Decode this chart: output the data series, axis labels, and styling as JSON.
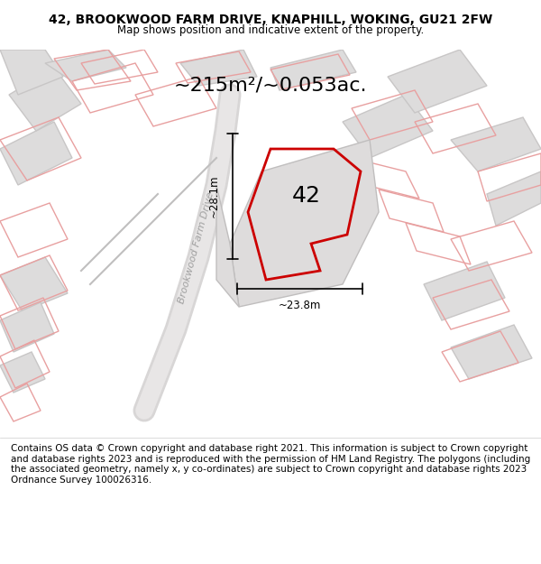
{
  "title_line1": "42, BROOKWOOD FARM DRIVE, KNAPHILL, WOKING, GU21 2FW",
  "title_line2": "Map shows position and indicative extent of the property.",
  "area_text": "~215m²/~0.053ac.",
  "dim_vertical": "~28.1m",
  "dim_horizontal": "~23.8m",
  "label_42": "42",
  "road_label": "Brookwood Farm Drive",
  "footer_text": "Contains OS data © Crown copyright and database right 2021. This information is subject to Crown copyright and database rights 2023 and is reproduced with the permission of HM Land Registry. The polygons (including the associated geometry, namely x, y co-ordinates) are subject to Crown copyright and database rights 2023 Ordnance Survey 100026316.",
  "bg_color": "#f0efef",
  "map_bg": "#f0efef",
  "red_color": "#cc0000",
  "light_red": "#f5c0c0",
  "gray_outline": "#b0b0b0",
  "block_fill": "#e0dede",
  "title_fontsize": 10,
  "footer_fontsize": 7.5
}
